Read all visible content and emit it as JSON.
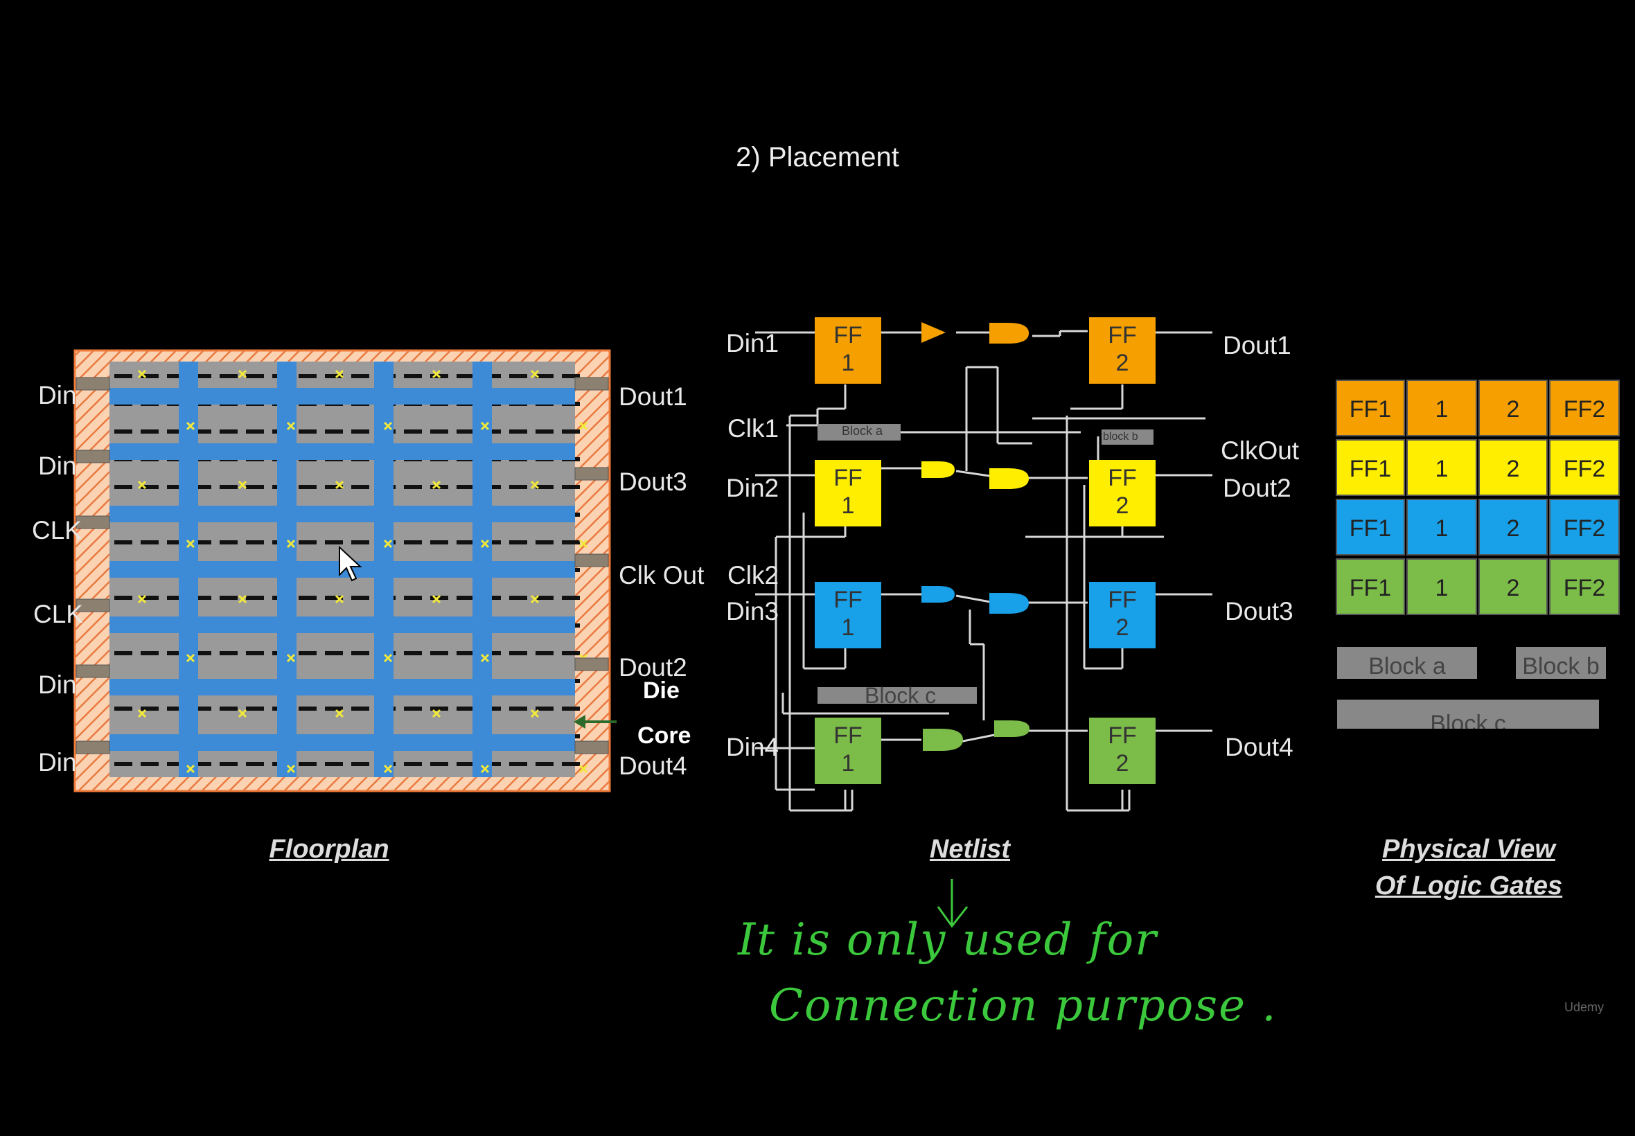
{
  "title": "2) Placement",
  "floorplan": {
    "caption": "Floorplan",
    "left_pins": [
      "Din",
      "Din",
      "CLK",
      "CLK",
      "Din",
      "Din"
    ],
    "right_pins": [
      "Dout1",
      "Dout3",
      "Clk Out",
      "Dout2",
      "Dout4"
    ],
    "die_label": "Die",
    "core_label": "Core"
  },
  "netlist": {
    "caption": "Netlist",
    "inputs": [
      "Din1",
      "Clk1",
      "Din2",
      "Clk2",
      "Din3",
      "Din4"
    ],
    "outputs": [
      "Dout1",
      "ClkOut",
      "Dout2",
      "Dout3",
      "Dout4"
    ],
    "ff_label": "FF",
    "ff1_num": "1",
    "ff2_num": "2",
    "blocks": [
      "Block a",
      "block b",
      "Block c"
    ]
  },
  "physical_view": {
    "caption_line1": "Physical View",
    "caption_line2": "Of Logic Gates",
    "rows": [
      {
        "color": "#f5a000",
        "cells": [
          "FF1",
          "1",
          "2",
          "FF2"
        ]
      },
      {
        "color": "#ffee00",
        "cells": [
          "FF1",
          "1",
          "2",
          "FF2"
        ]
      },
      {
        "color": "#18a0e8",
        "cells": [
          "FF1",
          "1",
          "2",
          "FF2"
        ]
      },
      {
        "color": "#7cbc48",
        "cells": [
          "FF1",
          "1",
          "2",
          "FF2"
        ]
      }
    ],
    "blocks": [
      "Block a",
      "Block b",
      "Block c"
    ]
  },
  "annotation": {
    "line1": "It is only used for",
    "line2": "Connection purpose ."
  },
  "colors": {
    "orange": "#f5a000",
    "yellow": "#ffee00",
    "blue": "#18a0e8",
    "green": "#7cbc48",
    "floor_blue": "#3d8ad6",
    "annotation_green": "#3cc83c"
  },
  "watermark": "Udemy"
}
